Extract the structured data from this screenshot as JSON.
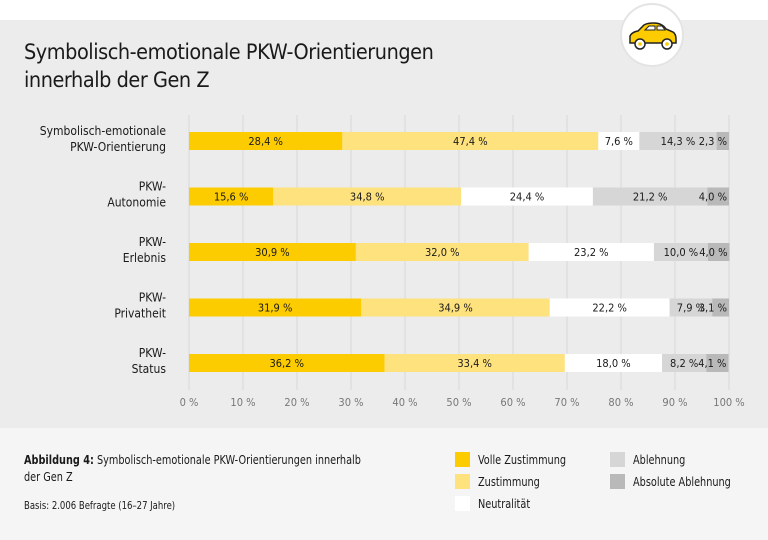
{
  "title_line1": "Symbolisch-emotionale PKW-Orientierungen",
  "title_line2": "innerhalb der Gen Z",
  "logo_icon": "car-icon",
  "caption": {
    "label": "Abbildung 4:",
    "text": "Symbolisch-emotionale PKW-Orientierungen innerhalb der Gen Z",
    "basis": "Basis: 2.006 Befragte (16–27 Jahre)"
  },
  "chart_data": {
    "type": "bar",
    "orientation": "horizontal",
    "stacked": true,
    "categories": [
      [
        "Symbolisch-emotionale",
        "PKW-Orientierung"
      ],
      [
        "PKW-",
        "Autonomie"
      ],
      [
        "PKW-",
        "Erlebnis"
      ],
      [
        "PKW-",
        "Privatheit"
      ],
      [
        "PKW-",
        "Status"
      ]
    ],
    "series": [
      {
        "name": "Volle Zustimmung",
        "color": "#fccc00",
        "values": [
          28.4,
          15.6,
          30.9,
          31.9,
          36.2
        ]
      },
      {
        "name": "Zustimmung",
        "color": "#fee27e",
        "values": [
          47.4,
          34.8,
          32.0,
          34.9,
          33.4
        ]
      },
      {
        "name": "Neutralität",
        "color": "#ffffff",
        "values": [
          7.6,
          24.4,
          23.2,
          22.2,
          18.0
        ]
      },
      {
        "name": "Ablehnung",
        "color": "#d6d6d6",
        "values": [
          14.3,
          21.2,
          10.0,
          7.9,
          8.2
        ]
      },
      {
        "name": "Absolute Ablehnung",
        "color": "#b9b9b9",
        "values": [
          2.3,
          4.0,
          4.0,
          3.1,
          4.1
        ]
      }
    ],
    "xlim": [
      0,
      100
    ],
    "xticks": [
      "0 %",
      "10 %",
      "20 %",
      "30 %",
      "40 %",
      "50 %",
      "60 %",
      "70 %",
      "80 %",
      "90 %",
      "100 %"
    ],
    "grid": true,
    "legend_placement": "bottom-right"
  }
}
